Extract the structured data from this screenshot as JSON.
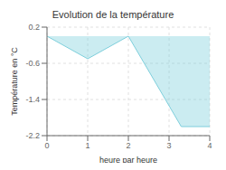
{
  "chart_data": {
    "type": "area",
    "title": "Evolution de la température",
    "xlabel": "heure par heure",
    "ylabel": "Température en °C",
    "x": [
      0,
      1,
      2,
      3.3,
      4
    ],
    "values": [
      0.0,
      -0.5,
      0.0,
      -2.0,
      -2.0
    ],
    "color": "#7ecfdc",
    "xlim": [
      0,
      4
    ],
    "ylim": [
      -2.2,
      0.2
    ],
    "xticks": [
      0,
      1,
      2,
      3,
      4
    ],
    "yticks": [
      0.2,
      -0.6,
      -1.4,
      -2.2
    ],
    "grid": true
  }
}
